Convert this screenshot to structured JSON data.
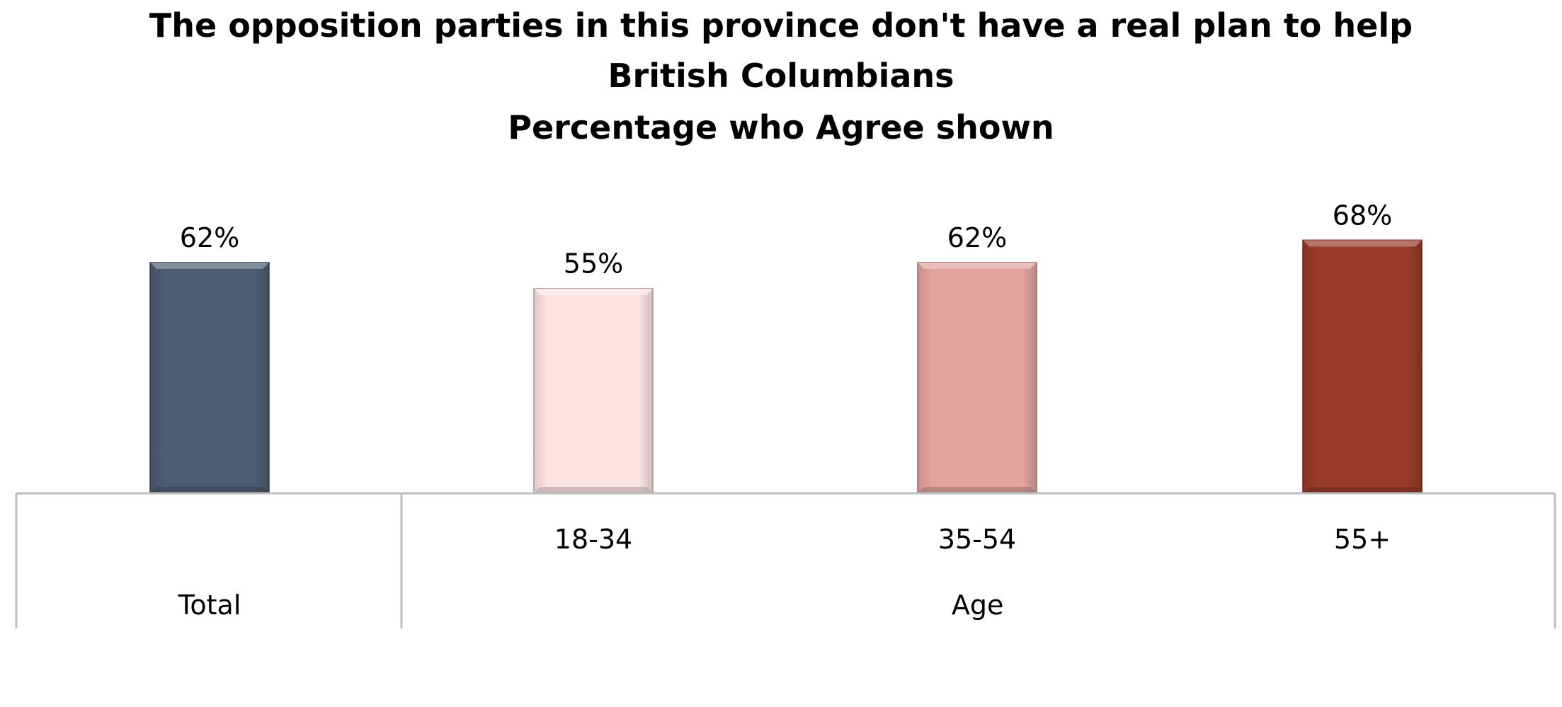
{
  "chart_data": {
    "type": "bar",
    "title": [
      "The opposition parties in this province don't have a real plan to help",
      "British Columbians",
      "Percentage who Agree shown"
    ],
    "categories": [
      "Total",
      "18-34",
      "35-54",
      "55+"
    ],
    "values": [
      62,
      55,
      62,
      68
    ],
    "value_labels": [
      "62%",
      "55%",
      "62%",
      "68%"
    ],
    "bar_colors": [
      "#4d5d71",
      "#fce4e4",
      "#e3a39f",
      "#9a3a2a"
    ],
    "groups": [
      {
        "label": "Total",
        "categories": [
          "Total"
        ]
      },
      {
        "label": "Age",
        "categories": [
          "18-34",
          "35-54",
          "55+"
        ]
      }
    ],
    "ylim": [
      0,
      100
    ],
    "grid": false,
    "legend": "none",
    "xlabel": "",
    "ylabel": ""
  }
}
